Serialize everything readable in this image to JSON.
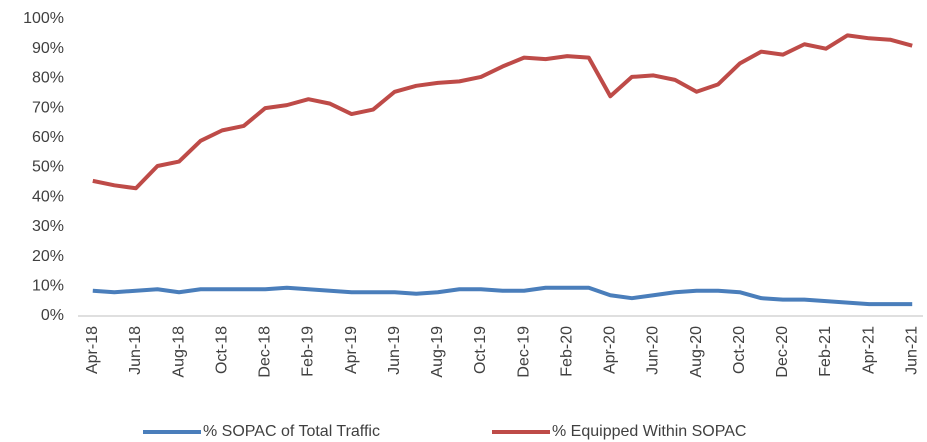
{
  "chart_data": {
    "type": "line",
    "categories": [
      "Apr-18",
      null,
      "Jun-18",
      null,
      "Aug-18",
      null,
      "Oct-18",
      null,
      "Dec-18",
      null,
      "Feb-19",
      null,
      "Apr-19",
      null,
      "Jun-19",
      null,
      "Aug-19",
      null,
      "Oct-19",
      null,
      "Dec-19",
      null,
      "Feb-20",
      null,
      "Apr-20",
      null,
      "Jun-20",
      null,
      "Aug-20",
      null,
      "Oct-20",
      null,
      "Dec-20",
      null,
      "Feb-21",
      null,
      "Apr-21",
      null,
      "Jun-21"
    ],
    "series": [
      {
        "name": "% SOPAC of Total Traffic",
        "color": "#4a7ebb",
        "values": [
          8.5,
          8,
          8.5,
          9,
          8,
          9,
          9,
          9,
          9,
          9.5,
          9,
          8.5,
          8,
          8,
          8,
          7.5,
          8,
          9,
          9,
          8.5,
          8.5,
          9.5,
          9.5,
          9.5,
          7,
          6,
          7,
          8,
          8.5,
          8.5,
          8,
          6,
          5.5,
          5.5,
          5,
          4.5,
          4,
          4,
          4
        ]
      },
      {
        "name": "% Equipped Within SOPAC",
        "color": "#be4b48",
        "values": [
          45.5,
          44,
          43,
          50.5,
          52,
          59,
          62.5,
          64,
          70,
          71,
          73,
          71.5,
          68,
          69.5,
          75.5,
          77.5,
          78.5,
          79,
          80.5,
          84,
          87,
          86.5,
          87.5,
          87,
          74,
          80.5,
          81,
          79.5,
          75.5,
          78,
          85,
          89,
          88,
          91.5,
          90,
          94.5,
          93.5,
          93,
          91
        ]
      }
    ],
    "ylim": [
      0,
      100
    ],
    "yticks": [
      {
        "value": 0,
        "label": "0%"
      },
      {
        "value": 10,
        "label": "10%"
      },
      {
        "value": 20,
        "label": "20%"
      },
      {
        "value": 30,
        "label": "30%"
      },
      {
        "value": 40,
        "label": "40%"
      },
      {
        "value": 50,
        "label": "50%"
      },
      {
        "value": 60,
        "label": "60%"
      },
      {
        "value": 70,
        "label": "70%"
      },
      {
        "value": 80,
        "label": "80%"
      },
      {
        "value": 90,
        "label": "90%"
      },
      {
        "value": 100,
        "label": "100%"
      }
    ],
    "grid": false,
    "legend": "bottom"
  }
}
